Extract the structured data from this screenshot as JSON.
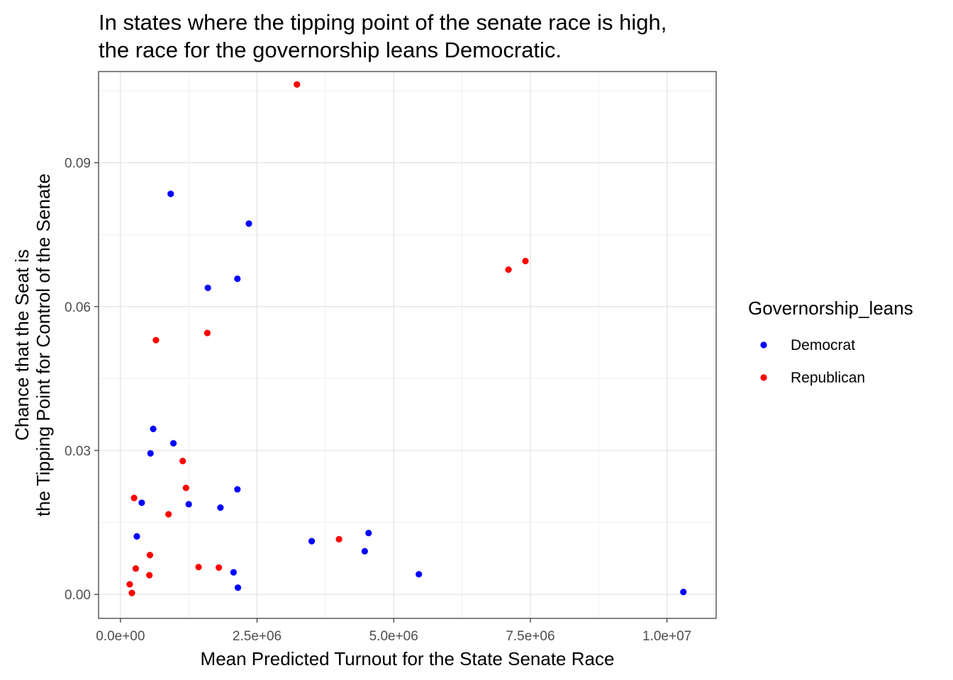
{
  "chart_data": {
    "type": "scatter",
    "title_lines": [
      "In states where the tipping point of the senate race is high,",
      "the race for the governorship leans Democratic."
    ],
    "xlabel": "Mean Predicted Turnout for the State Senate Race",
    "ylabel_lines": [
      "Chance that the Seat is",
      "the Tipping Point for Control of the Senate"
    ],
    "xlim": [
      -400000,
      10900000
    ],
    "ylim": [
      -0.005,
      0.109
    ],
    "x_ticks": [
      0,
      2500000,
      5000000,
      7500000,
      10000000
    ],
    "x_tick_labels": [
      "0.0e+00",
      "2.5e+06",
      "5.0e+06",
      "7.5e+06",
      "1.0e+07"
    ],
    "y_ticks": [
      0,
      0.03,
      0.06,
      0.09
    ],
    "y_tick_labels": [
      "0.00",
      "0.03",
      "0.06",
      "0.09"
    ],
    "grid": true,
    "legend": {
      "title": "Governorship_leans",
      "position": "right",
      "entries": [
        {
          "name": "Democrat",
          "color": "#0000ff"
        },
        {
          "name": "Republican",
          "color": "#ff0000"
        }
      ]
    },
    "series": [
      {
        "name": "Democrat",
        "color": "#0000ff",
        "points": [
          {
            "x": 920000,
            "y": 0.0835
          },
          {
            "x": 2350000,
            "y": 0.0773
          },
          {
            "x": 1600000,
            "y": 0.0639
          },
          {
            "x": 2140000,
            "y": 0.0658
          },
          {
            "x": 600000,
            "y": 0.0345
          },
          {
            "x": 970000,
            "y": 0.0315
          },
          {
            "x": 550000,
            "y": 0.0294
          },
          {
            "x": 2140000,
            "y": 0.0219
          },
          {
            "x": 390000,
            "y": 0.0191
          },
          {
            "x": 1250000,
            "y": 0.0188
          },
          {
            "x": 1830000,
            "y": 0.0181
          },
          {
            "x": 300000,
            "y": 0.0121
          },
          {
            "x": 3500000,
            "y": 0.0111
          },
          {
            "x": 4540000,
            "y": 0.0128
          },
          {
            "x": 4470000,
            "y": 0.009
          },
          {
            "x": 2070000,
            "y": 0.0046
          },
          {
            "x": 5460000,
            "y": 0.0042
          },
          {
            "x": 2150000,
            "y": 0.0014
          },
          {
            "x": 10300000,
            "y": 0.0005
          }
        ]
      },
      {
        "name": "Republican",
        "color": "#ff0000",
        "points": [
          {
            "x": 3230000,
            "y": 0.1063
          },
          {
            "x": 7100000,
            "y": 0.0677
          },
          {
            "x": 7410000,
            "y": 0.0695
          },
          {
            "x": 650000,
            "y": 0.053
          },
          {
            "x": 1590000,
            "y": 0.0545
          },
          {
            "x": 1140000,
            "y": 0.0278
          },
          {
            "x": 1200000,
            "y": 0.0222
          },
          {
            "x": 250000,
            "y": 0.0201
          },
          {
            "x": 880000,
            "y": 0.0167
          },
          {
            "x": 4000000,
            "y": 0.0115
          },
          {
            "x": 540000,
            "y": 0.0082
          },
          {
            "x": 1430000,
            "y": 0.0057
          },
          {
            "x": 1800000,
            "y": 0.0056
          },
          {
            "x": 280000,
            "y": 0.0054
          },
          {
            "x": 530000,
            "y": 0.004
          },
          {
            "x": 170000,
            "y": 0.0021
          },
          {
            "x": 210000,
            "y": 0.0003
          }
        ]
      }
    ]
  }
}
